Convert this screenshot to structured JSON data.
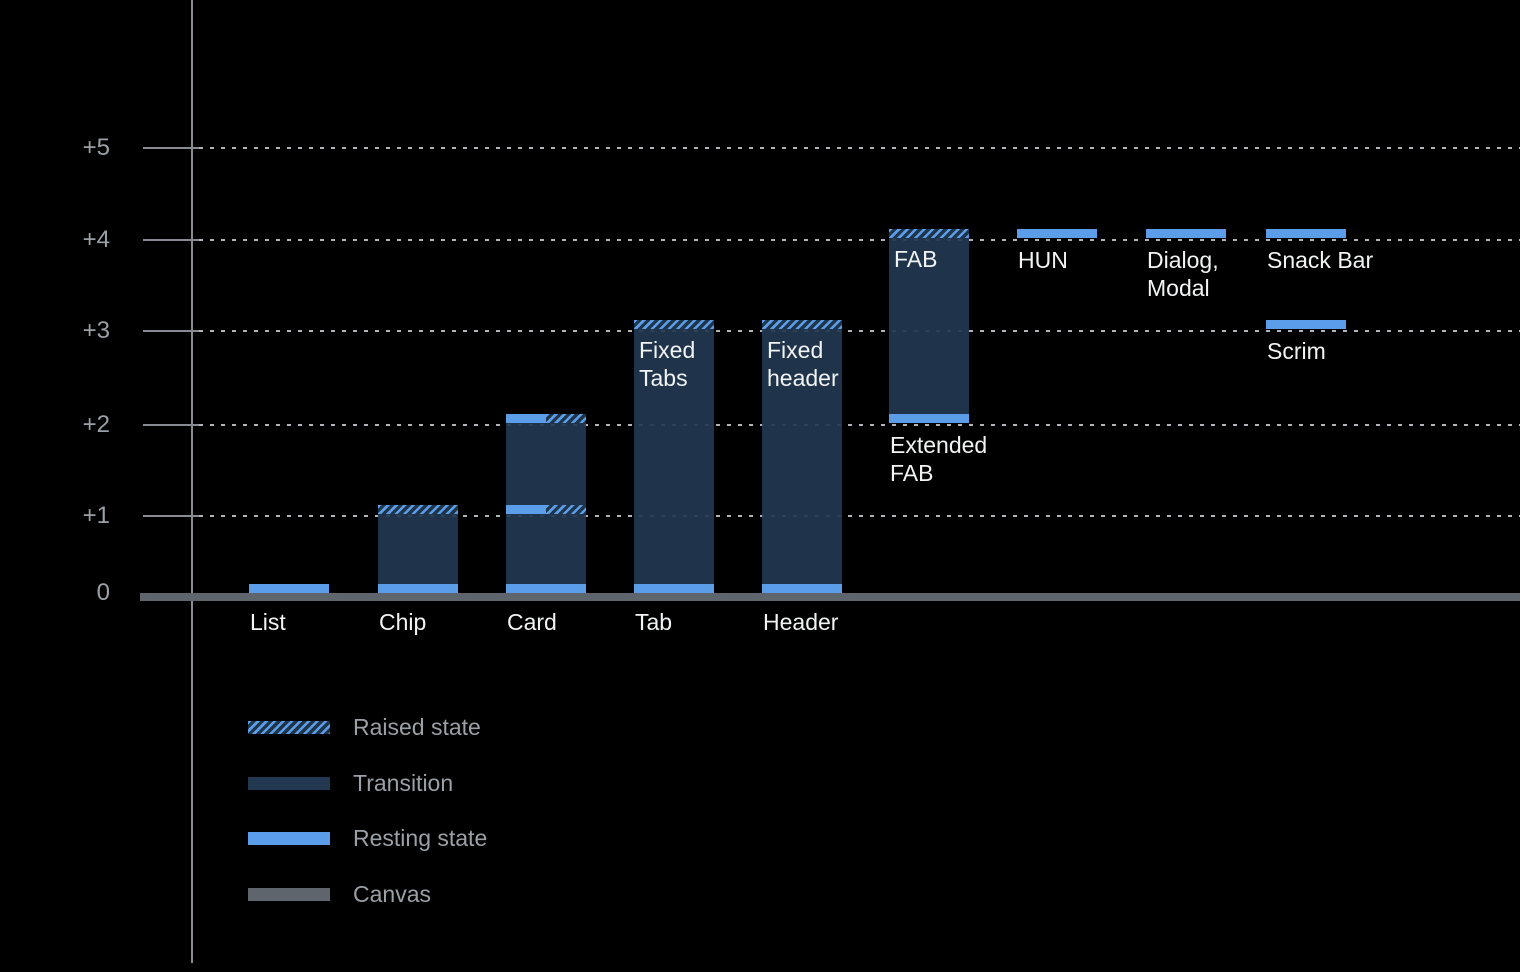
{
  "chart_data": {
    "type": "bar",
    "title": "",
    "ylim": [
      0,
      5
    ],
    "grid": "dotted-horizontal",
    "legend_position": "bottom-left",
    "y_ticks": [
      {
        "label": "+5",
        "level": 5
      },
      {
        "label": "+4",
        "level": 4
      },
      {
        "label": "+3",
        "level": 3
      },
      {
        "label": "+2",
        "level": 2
      },
      {
        "label": "+1",
        "level": 1
      },
      {
        "label": "0",
        "level": 0
      }
    ],
    "legend": [
      {
        "key": "raised",
        "label": "Raised state"
      },
      {
        "key": "transition",
        "label": "Transition"
      },
      {
        "key": "resting",
        "label": "Resting state"
      },
      {
        "key": "canvas",
        "label": "Canvas"
      }
    ],
    "colors": {
      "background": "#000000",
      "resting": "#5B9DE8",
      "transition": "#223850",
      "raised_background": "#1E3448",
      "canvas": "#5F656C",
      "axis": "#888C92",
      "grid_dots": "#B0B4B9",
      "label_text": "#F1F3F4",
      "muted_text": "#9AA0A6"
    },
    "components": [
      {
        "name": "List",
        "col": 0,
        "axis_label": "List",
        "resting_level": 0,
        "raised_level": null,
        "segments": [
          {
            "type": "resting",
            "level": 0
          }
        ]
      },
      {
        "name": "Chip",
        "col": 1,
        "axis_label": "Chip",
        "resting_level": 0,
        "raised_level": 1,
        "segments": [
          {
            "type": "resting",
            "level": 0
          },
          {
            "type": "transition",
            "from": 0,
            "to": 1
          },
          {
            "type": "raised",
            "level": 1
          }
        ]
      },
      {
        "name": "Card",
        "col": 2,
        "axis_label": "Card",
        "resting_level": 0,
        "raised_level": 2,
        "segments": [
          {
            "type": "resting",
            "level": 0
          },
          {
            "type": "transition",
            "from": 0,
            "to": 1
          },
          {
            "type": "resting_raised",
            "level": 1
          },
          {
            "type": "transition",
            "from": 1,
            "to": 2
          },
          {
            "type": "resting_raised",
            "level": 2
          }
        ]
      },
      {
        "name": "Fixed Tabs",
        "col": 3,
        "axis_label": "Tab",
        "in_bar_label": "Fixed\nTabs",
        "in_bar_label_level": 3,
        "resting_level": 0,
        "raised_level": 3,
        "segments": [
          {
            "type": "resting",
            "level": 0
          },
          {
            "type": "transition",
            "from": 0,
            "to": 3
          },
          {
            "type": "raised",
            "level": 3
          }
        ]
      },
      {
        "name": "Fixed header",
        "col": 4,
        "axis_label": "Header",
        "in_bar_label": "Fixed\nheader",
        "in_bar_label_level": 3,
        "resting_level": 0,
        "raised_level": 3,
        "segments": [
          {
            "type": "resting",
            "level": 0
          },
          {
            "type": "transition",
            "from": 0,
            "to": 3
          },
          {
            "type": "raised",
            "level": 3
          }
        ]
      },
      {
        "name": "Extended FAB",
        "col": 5,
        "in_bar_label": "FAB",
        "in_bar_label_level": 4,
        "below_label": "Extended\nFAB",
        "below_label_level": 2,
        "resting_level": 2,
        "raised_level": 4,
        "segments": [
          {
            "type": "resting",
            "level": 2
          },
          {
            "type": "transition",
            "from": 2,
            "to": 4
          },
          {
            "type": "raised",
            "level": 4
          }
        ]
      },
      {
        "name": "HUN",
        "col": 6,
        "below_label": "HUN",
        "below_label_level": 4,
        "resting_level": 4,
        "raised_level": null,
        "segments": [
          {
            "type": "resting",
            "level": 4
          }
        ]
      },
      {
        "name": "Dialog, Modal",
        "col": 7,
        "below_label": "Dialog,\nModal",
        "below_label_level": 4,
        "resting_level": 4,
        "raised_level": null,
        "segments": [
          {
            "type": "resting",
            "level": 4
          }
        ]
      },
      {
        "name": "Snack Bar",
        "col": 8,
        "below_label": "Snack Bar",
        "below_label_level": 4,
        "resting_level": 4,
        "raised_level": null,
        "segments": [
          {
            "type": "resting",
            "level": 4
          }
        ]
      },
      {
        "name": "Scrim",
        "col": 8,
        "below_label": "Scrim",
        "below_label_level": 3,
        "resting_level": 3,
        "raised_level": null,
        "segments": [
          {
            "type": "resting",
            "level": 3
          }
        ]
      }
    ]
  }
}
